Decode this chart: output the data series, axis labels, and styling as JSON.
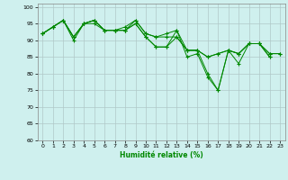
{
  "xlabel": "Humidité relative (%)",
  "xlim": [
    -0.5,
    23.5
  ],
  "ylim": [
    60,
    101
  ],
  "yticks": [
    60,
    65,
    70,
    75,
    80,
    85,
    90,
    95,
    100
  ],
  "xticks": [
    0,
    1,
    2,
    3,
    4,
    5,
    6,
    7,
    8,
    9,
    10,
    11,
    12,
    13,
    14,
    15,
    16,
    17,
    18,
    19,
    20,
    21,
    22,
    23
  ],
  "background_color": "#cff0ee",
  "grid_color": "#b0c8c8",
  "line_color": "#008800",
  "series": [
    [
      92,
      94,
      96,
      91,
      95,
      96,
      93,
      93,
      93,
      96,
      92,
      91,
      92,
      93,
      85,
      86,
      79,
      75,
      87,
      83,
      89,
      89,
      85,
      null
    ],
    [
      92,
      94,
      96,
      90,
      95,
      96,
      93,
      93,
      93,
      95,
      91,
      88,
      88,
      93,
      87,
      87,
      80,
      75,
      87,
      86,
      89,
      89,
      85,
      null
    ],
    [
      92,
      94,
      96,
      91,
      95,
      96,
      93,
      93,
      94,
      96,
      92,
      91,
      91,
      91,
      87,
      87,
      85,
      86,
      87,
      86,
      89,
      89,
      86,
      86
    ],
    [
      92,
      94,
      96,
      91,
      95,
      95,
      93,
      93,
      93,
      95,
      91,
      88,
      88,
      91,
      87,
      87,
      85,
      86,
      87,
      86,
      89,
      89,
      86,
      86
    ]
  ]
}
